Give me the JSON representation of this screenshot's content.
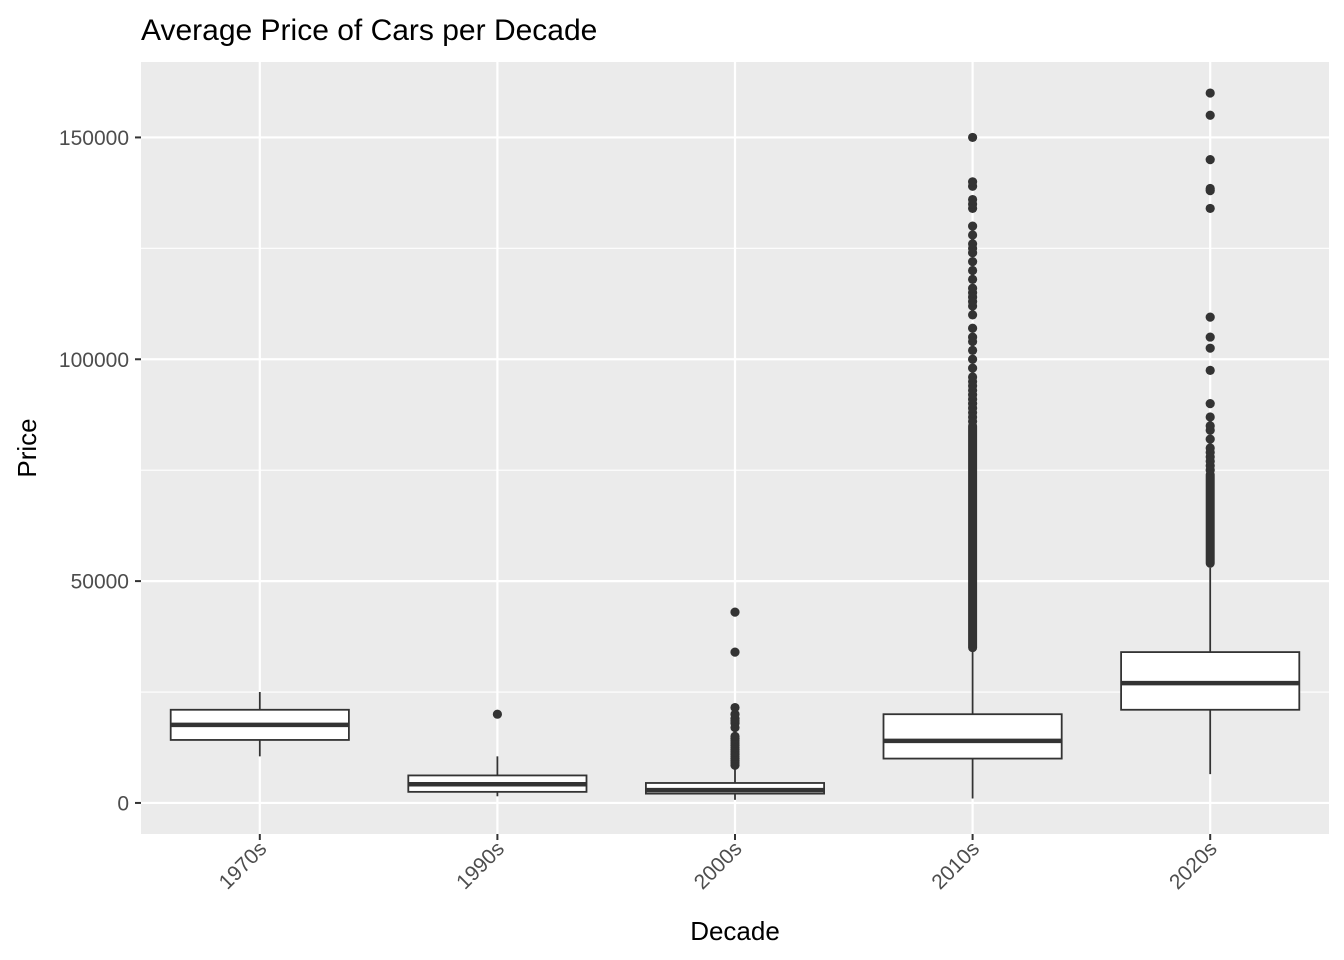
{
  "chart_data": {
    "type": "boxplot",
    "title": "Average Price of Cars per Decade",
    "xlabel": "Decade",
    "ylabel": "Price",
    "categories": [
      "1970s",
      "1990s",
      "2000s",
      "2010s",
      "2020s"
    ],
    "ylim": [
      -7000,
      167000
    ],
    "yticks": [
      0,
      50000,
      100000,
      150000
    ],
    "ytick_labels": [
      "0",
      "50000",
      "100000",
      "150000"
    ],
    "y_minor_ticks": [
      25000,
      75000,
      125000
    ],
    "grid": true,
    "x_tick_rotation_deg": 45,
    "colors": {
      "panel_bg": "#ebebeb",
      "grid": "#ffffff",
      "box_fill": "#ffffff",
      "box_stroke": "#333333",
      "outlier": "#333333",
      "tick_text": "#4d4d4d",
      "tick_mark": "#333333"
    },
    "boxes": [
      {
        "category": "1970s",
        "whisker_low": 10500,
        "q1": 14200,
        "median": 17600,
        "q3": 21000,
        "whisker_high": 25000,
        "outliers": []
      },
      {
        "category": "1990s",
        "whisker_low": 1500,
        "q1": 2500,
        "median": 4200,
        "q3": 6200,
        "whisker_high": 10500,
        "outliers": [
          20000
        ]
      },
      {
        "category": "2000s",
        "whisker_low": 700,
        "q1": 2100,
        "median": 2900,
        "q3": 4500,
        "whisker_high": 8000,
        "outliers": [
          8500,
          9000,
          9500,
          10000,
          10500,
          11000,
          11500,
          12000,
          12500,
          13000,
          13500,
          14000,
          14500,
          15000,
          17000,
          18000,
          18500,
          19000,
          20000,
          21500,
          34000,
          43000
        ]
      },
      {
        "category": "2010s",
        "whisker_low": 1000,
        "q1": 10000,
        "median": 14000,
        "q3": 20000,
        "whisker_high": 34500,
        "outliers_range": [
          35000,
          85000
        ],
        "outliers": [
          86000,
          87000,
          88000,
          89000,
          90000,
          91000,
          92000,
          93000,
          94000,
          95000,
          96000,
          98000,
          100000,
          102000,
          104000,
          105000,
          107000,
          110000,
          112000,
          113000,
          114000,
          115000,
          116000,
          118000,
          120000,
          122000,
          124000,
          125000,
          126000,
          128000,
          130000,
          134000,
          135000,
          136000,
          139000,
          140000,
          150000
        ]
      },
      {
        "category": "2020s",
        "whisker_low": 6500,
        "q1": 21000,
        "median": 27000,
        "q3": 34000,
        "whisker_high": 53000,
        "outliers_range": [
          54000,
          74000
        ],
        "outliers": [
          75000,
          76000,
          77000,
          78000,
          79000,
          80000,
          82000,
          84000,
          85000,
          87000,
          90000,
          97500,
          102500,
          105000,
          109500,
          134000,
          138000,
          138500,
          145000,
          155000,
          160000
        ]
      }
    ]
  }
}
